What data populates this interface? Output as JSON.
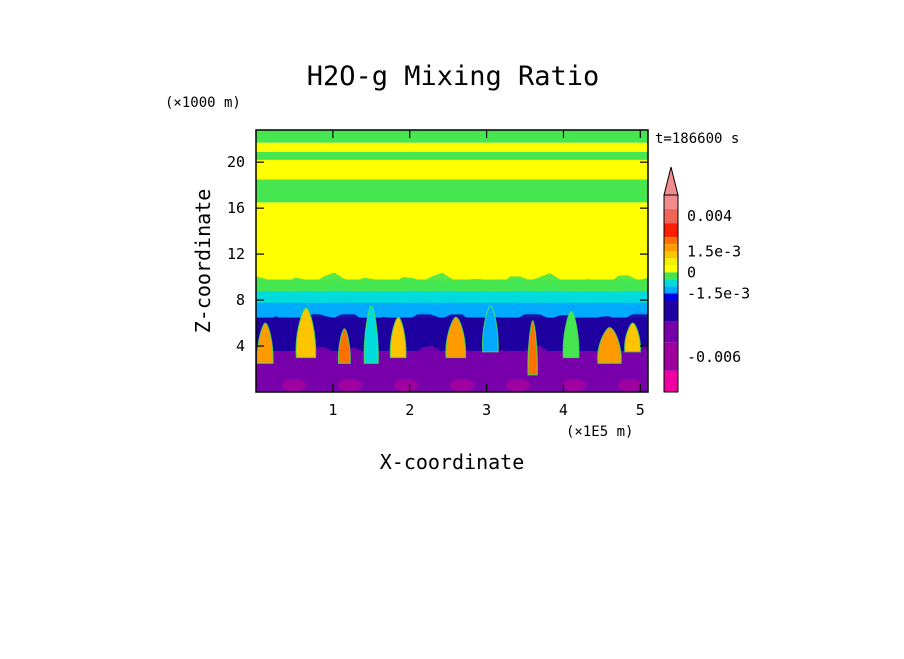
{
  "chart_data": {
    "type": "heatmap",
    "title": "H2O-g Mixing Ratio",
    "xlabel": "X-coordinate",
    "ylabel": "Z-coordinate",
    "x_scale_label": "(×1E5 m)",
    "y_scale_label": "(×1000 m)",
    "timestamp": "t=186600 s",
    "xlim": [
      0,
      5.1
    ],
    "ylim": [
      0,
      22.8
    ],
    "x_ticks": [
      1,
      2,
      3,
      4,
      5
    ],
    "y_ticks": [
      4,
      8,
      12,
      16,
      20
    ],
    "x_tick_labels": [
      "1",
      "2",
      "3",
      "4",
      "5"
    ],
    "y_tick_labels": [
      "4",
      "8",
      "12",
      "16",
      "20"
    ],
    "colorbar": {
      "labels": [
        "0.004",
        "1.5e-3",
        "0",
        "-1.5e-3",
        "-0.006"
      ],
      "label_values": [
        0.004,
        0.0015,
        0,
        -0.0015,
        -0.006
      ],
      "range": [
        -0.0085,
        0.0055
      ],
      "extend": "max",
      "levels": [
        {
          "from": 0.0045,
          "to": 0.0055,
          "color": "#f08c8c"
        },
        {
          "from": 0.0035,
          "to": 0.0045,
          "color": "#f0645a"
        },
        {
          "from": 0.0025,
          "to": 0.0035,
          "color": "#ff1e00"
        },
        {
          "from": 0.002,
          "to": 0.0025,
          "color": "#ff7000"
        },
        {
          "from": 0.0015,
          "to": 0.002,
          "color": "#ff9a00"
        },
        {
          "from": 0.001,
          "to": 0.0015,
          "color": "#ffc400"
        },
        {
          "from": 0.0005,
          "to": 0.001,
          "color": "#f0f000"
        },
        {
          "from": 0,
          "to": 0.0005,
          "color": "#ffff00"
        },
        {
          "from": -0.0005,
          "to": 0,
          "color": "#46e650"
        },
        {
          "from": -0.001,
          "to": -0.0005,
          "color": "#00dcdc"
        },
        {
          "from": -0.0015,
          "to": -0.001,
          "color": "#00aaff"
        },
        {
          "from": -0.002,
          "to": -0.0015,
          "color": "#0000e6"
        },
        {
          "from": -0.0035,
          "to": -0.002,
          "color": "#1e00a0"
        },
        {
          "from": -0.005,
          "to": -0.0035,
          "color": "#7800aa"
        },
        {
          "from": -0.007,
          "to": -0.005,
          "color": "#a000a0"
        },
        {
          "from": -0.0085,
          "to": -0.007,
          "color": "#f000a0"
        }
      ]
    },
    "field_bands": [
      {
        "z_from": 0,
        "z_to": 3.5,
        "color": "#7800aa"
      },
      {
        "z_from": 3.5,
        "z_to": 6.5,
        "color": "#1e00a0"
      },
      {
        "z_from": 6.5,
        "z_to": 7.8,
        "color": "#00aaff"
      },
      {
        "z_from": 7.8,
        "z_to": 8.8,
        "color": "#00dcdc"
      },
      {
        "z_from": 8.8,
        "z_to": 9.8,
        "color": "#46e650"
      },
      {
        "z_from": 9.8,
        "z_to": 16.5,
        "color": "#ffff00"
      },
      {
        "z_from": 16.5,
        "z_to": 18.5,
        "color": "#46e650"
      },
      {
        "z_from": 18.5,
        "z_to": 20.2,
        "color": "#ffff00"
      },
      {
        "z_from": 20.2,
        "z_to": 20.9,
        "color": "#46e650"
      },
      {
        "z_from": 20.9,
        "z_to": 21.7,
        "color": "#ffff00"
      },
      {
        "z_from": 21.7,
        "z_to": 22.8,
        "color": "#46e650"
      }
    ],
    "plumes": [
      {
        "x": 0.12,
        "z_base": 2.5,
        "z_top": 6.0,
        "width": 0.2,
        "color": "#ff9a00"
      },
      {
        "x": 0.65,
        "z_base": 3.0,
        "z_top": 7.3,
        "width": 0.25,
        "color": "#ffc400"
      },
      {
        "x": 1.15,
        "z_base": 2.5,
        "z_top": 5.5,
        "width": 0.15,
        "color": "#ff7000"
      },
      {
        "x": 1.5,
        "z_base": 2.5,
        "z_top": 7.5,
        "width": 0.18,
        "color": "#00dcdc"
      },
      {
        "x": 1.85,
        "z_base": 3.0,
        "z_top": 6.5,
        "width": 0.2,
        "color": "#ffc400"
      },
      {
        "x": 2.6,
        "z_base": 3.0,
        "z_top": 6.5,
        "width": 0.25,
        "color": "#ff9a00"
      },
      {
        "x": 3.05,
        "z_base": 3.5,
        "z_top": 7.5,
        "width": 0.2,
        "color": "#00aaff"
      },
      {
        "x": 3.6,
        "z_base": 1.5,
        "z_top": 6.2,
        "width": 0.12,
        "color": "#ff7000"
      },
      {
        "x": 4.1,
        "z_base": 3.0,
        "z_top": 7.0,
        "width": 0.2,
        "color": "#46e650"
      },
      {
        "x": 4.6,
        "z_base": 2.5,
        "z_top": 5.6,
        "width": 0.3,
        "color": "#ff9a00"
      },
      {
        "x": 4.9,
        "z_base": 3.5,
        "z_top": 6.0,
        "width": 0.2,
        "color": "#ffc400"
      }
    ]
  }
}
